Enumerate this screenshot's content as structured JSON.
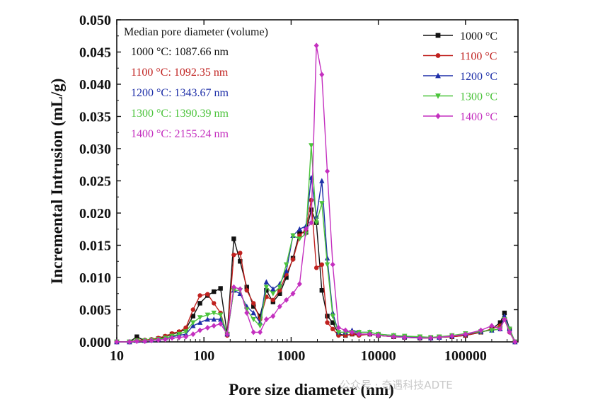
{
  "watermark": "公众号 · 奇遇科技ADTE",
  "chart_data": {
    "type": "line",
    "title": "",
    "xlabel": "Pore size diameter (nm)",
    "ylabel": "Incremental Intrusion (mL/g)",
    "xscale": "log",
    "xlim": [
      10,
      400000
    ],
    "ylim": [
      0,
      0.05
    ],
    "xticks": [
      10,
      100,
      1000,
      10000,
      100000
    ],
    "xtick_labels": [
      "10",
      "100",
      "1000",
      "10000",
      "100000"
    ],
    "yticks": [
      0.0,
      0.005,
      0.01,
      0.015,
      0.02,
      0.025,
      0.03,
      0.035,
      0.04,
      0.045,
      0.05
    ],
    "ytick_labels": [
      "0.000",
      "0.005",
      "0.010",
      "0.015",
      "0.020",
      "0.025",
      "0.030",
      "0.035",
      "0.040",
      "0.045",
      "0.050"
    ],
    "legend_position": "top-right",
    "grid": false,
    "annotation": {
      "title": "Median pore diameter (volume)",
      "lines": [
        {
          "text": "1000 °C: 1087.66 nm",
          "color": "#111111"
        },
        {
          "text": "1100 °C: 1092.35 nm",
          "color": "#c0211f"
        },
        {
          "text": "1200 °C: 1343.67 nm",
          "color": "#1e2fa8"
        },
        {
          "text": "1300 °C: 1390.39 nm",
          "color": "#4cc43c"
        },
        {
          "text": "1400 °C: 2155.24 nm",
          "color": "#c42fbf"
        }
      ]
    },
    "series": [
      {
        "name": "1000 °C",
        "color": "#111111",
        "marker": "square",
        "x": [
          10,
          14,
          17,
          21,
          25,
          30,
          36,
          43,
          52,
          62,
          75,
          90,
          110,
          130,
          155,
          185,
          220,
          260,
          310,
          370,
          440,
          520,
          620,
          740,
          880,
          1050,
          1250,
          1480,
          1700,
          1950,
          2250,
          2600,
          3000,
          3500,
          4200,
          5000,
          6000,
          8000,
          10000,
          15000,
          20000,
          30000,
          40000,
          50000,
          70000,
          100000,
          150000,
          200000,
          250000,
          280000,
          320000,
          370000
        ],
        "y": [
          0.0,
          0.0,
          0.0008,
          0.0002,
          0.0003,
          0.0005,
          0.0008,
          0.0012,
          0.0015,
          0.002,
          0.004,
          0.006,
          0.0072,
          0.0078,
          0.0083,
          0.0012,
          0.016,
          0.0125,
          0.0085,
          0.0055,
          0.004,
          0.008,
          0.0062,
          0.0075,
          0.01,
          0.013,
          0.017,
          0.017,
          0.0205,
          0.0185,
          0.008,
          0.004,
          0.003,
          0.0012,
          0.001,
          0.0012,
          0.0012,
          0.0012,
          0.001,
          0.0008,
          0.0007,
          0.0006,
          0.0006,
          0.0007,
          0.0008,
          0.001,
          0.0015,
          0.002,
          0.003,
          0.0045,
          0.002,
          0.0
        ]
      },
      {
        "name": "1100 °C",
        "color": "#c0211f",
        "marker": "circle",
        "x": [
          10,
          14,
          17,
          21,
          25,
          30,
          36,
          43,
          52,
          62,
          75,
          90,
          110,
          130,
          155,
          185,
          220,
          260,
          310,
          370,
          440,
          520,
          620,
          740,
          880,
          1050,
          1250,
          1480,
          1700,
          1950,
          2250,
          2600,
          3000,
          3500,
          4200,
          5000,
          6000,
          8000,
          10000,
          15000,
          20000,
          30000,
          40000,
          50000,
          70000,
          100000,
          150000,
          200000,
          250000,
          280000,
          320000,
          370000
        ],
        "y": [
          0.0,
          0.0,
          0.0003,
          0.0003,
          0.0004,
          0.0006,
          0.0009,
          0.0013,
          0.0016,
          0.0022,
          0.005,
          0.0072,
          0.0074,
          0.006,
          0.0045,
          0.001,
          0.0135,
          0.0138,
          0.008,
          0.006,
          0.0035,
          0.007,
          0.0065,
          0.008,
          0.0105,
          0.0128,
          0.0165,
          0.0175,
          0.022,
          0.0115,
          0.012,
          0.003,
          0.002,
          0.001,
          0.001,
          0.0012,
          0.001,
          0.0012,
          0.001,
          0.0008,
          0.0007,
          0.0006,
          0.0006,
          0.0007,
          0.0008,
          0.001,
          0.0015,
          0.002,
          0.0025,
          0.0035,
          0.0015,
          0.0
        ]
      },
      {
        "name": "1200 °C",
        "color": "#1e2fa8",
        "marker": "triangle-up",
        "x": [
          10,
          14,
          17,
          21,
          25,
          30,
          36,
          43,
          52,
          62,
          75,
          90,
          110,
          130,
          155,
          185,
          220,
          260,
          310,
          370,
          440,
          520,
          620,
          740,
          880,
          1050,
          1250,
          1480,
          1700,
          1950,
          2250,
          2600,
          3000,
          3500,
          4200,
          5000,
          6000,
          8000,
          10000,
          15000,
          20000,
          30000,
          40000,
          50000,
          70000,
          100000,
          150000,
          200000,
          250000,
          280000,
          320000,
          370000
        ],
        "y": [
          0.0,
          0.0,
          0.0002,
          0.0002,
          0.0003,
          0.0004,
          0.0006,
          0.0008,
          0.001,
          0.0012,
          0.0025,
          0.003,
          0.0035,
          0.0035,
          0.0035,
          0.0012,
          0.008,
          0.0075,
          0.0055,
          0.0045,
          0.003,
          0.0093,
          0.0082,
          0.009,
          0.011,
          0.0165,
          0.0175,
          0.018,
          0.0255,
          0.0195,
          0.025,
          0.013,
          0.0045,
          0.0015,
          0.0015,
          0.0018,
          0.0015,
          0.0015,
          0.0012,
          0.001,
          0.0008,
          0.0007,
          0.0006,
          0.0007,
          0.0009,
          0.0012,
          0.0016,
          0.0018,
          0.002,
          0.004,
          0.002,
          0.0
        ]
      },
      {
        "name": "1300 °C",
        "color": "#4cc43c",
        "marker": "triangle-down",
        "x": [
          10,
          14,
          17,
          21,
          25,
          30,
          36,
          43,
          52,
          62,
          75,
          90,
          110,
          130,
          155,
          185,
          220,
          260,
          310,
          370,
          440,
          520,
          620,
          740,
          880,
          1050,
          1250,
          1480,
          1700,
          1950,
          2250,
          2600,
          3000,
          3500,
          4200,
          5000,
          6000,
          8000,
          10000,
          15000,
          20000,
          30000,
          40000,
          50000,
          70000,
          100000,
          150000,
          200000,
          250000,
          280000,
          320000,
          370000
        ],
        "y": [
          0.0,
          0.0,
          0.0002,
          0.0002,
          0.0003,
          0.0004,
          0.0006,
          0.0009,
          0.0012,
          0.0016,
          0.003,
          0.0038,
          0.0042,
          0.0045,
          0.0042,
          0.0012,
          0.008,
          0.008,
          0.005,
          0.0035,
          0.0025,
          0.0085,
          0.0075,
          0.0085,
          0.012,
          0.0165,
          0.016,
          0.0168,
          0.0305,
          0.0185,
          0.0215,
          0.012,
          0.004,
          0.0015,
          0.0015,
          0.0015,
          0.0015,
          0.0015,
          0.0012,
          0.001,
          0.0009,
          0.0008,
          0.0007,
          0.0008,
          0.001,
          0.0013,
          0.0016,
          0.0018,
          0.002,
          0.0035,
          0.002,
          0.0
        ]
      },
      {
        "name": "1400 °C",
        "color": "#c42fbf",
        "marker": "diamond",
        "x": [
          10,
          14,
          17,
          21,
          25,
          30,
          36,
          43,
          52,
          62,
          75,
          90,
          110,
          130,
          155,
          185,
          220,
          260,
          310,
          370,
          440,
          520,
          620,
          740,
          880,
          1050,
          1250,
          1480,
          1700,
          1950,
          2250,
          2600,
          3000,
          3500,
          4200,
          5000,
          6000,
          8000,
          10000,
          15000,
          20000,
          30000,
          40000,
          50000,
          70000,
          100000,
          150000,
          200000,
          250000,
          280000,
          320000,
          370000
        ],
        "y": [
          0.0,
          0.0,
          0.0001,
          0.0001,
          0.0002,
          0.0003,
          0.0004,
          0.0006,
          0.0007,
          0.0008,
          0.0012,
          0.0018,
          0.0022,
          0.0025,
          0.0028,
          0.0012,
          0.0085,
          0.0082,
          0.0045,
          0.0015,
          0.0015,
          0.0035,
          0.004,
          0.0055,
          0.0065,
          0.0075,
          0.009,
          0.0175,
          0.0185,
          0.046,
          0.0415,
          0.0265,
          0.012,
          0.0022,
          0.0018,
          0.0015,
          0.0012,
          0.0012,
          0.001,
          0.0008,
          0.0007,
          0.0006,
          0.0006,
          0.0007,
          0.0009,
          0.0012,
          0.0018,
          0.0025,
          0.002,
          0.0035,
          0.0015,
          0.0
        ]
      }
    ]
  }
}
